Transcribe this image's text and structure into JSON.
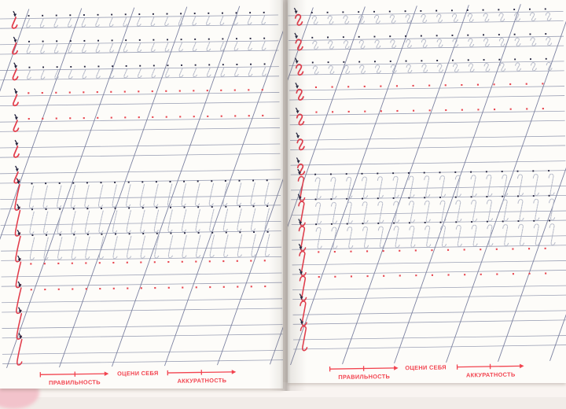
{
  "document": {
    "kind": "cursive handwriting practice workbook spread",
    "visible_pages": 2
  },
  "labels": {
    "rate_yourself": "ОЦЕНИ СЕБЯ",
    "correctness": "ПРАВИЛЬНОСТЬ",
    "accuracy": "АККУРАТНОСТЬ"
  },
  "colors": {
    "page_bg": "#fdfcf9",
    "rule_line": "#9298af",
    "slant_line": "#767c9d",
    "traced_letter": "#aeb3c4",
    "start_dot": "#24243e",
    "model_red": "#e23c4b",
    "red_dot": "#e8454f",
    "label_red": "#f2434f",
    "cover_pink": "#eeb8c3",
    "backdrop": "#f1ece8"
  },
  "pages": [
    {
      "id": "left",
      "practiced_element": "slant line with curve at bottom (hook)",
      "letters_per_trace_row": 18,
      "dots_per_dot_row": 18,
      "rows": [
        {
          "row": 1,
          "type": "trace",
          "size": "short"
        },
        {
          "row": 2,
          "type": "trace",
          "size": "short"
        },
        {
          "row": 3,
          "type": "trace",
          "size": "short"
        },
        {
          "row": 4,
          "type": "dots",
          "size": "short"
        },
        {
          "row": 5,
          "type": "dots",
          "size": "short"
        },
        {
          "row": 6,
          "type": "empty",
          "size": "short"
        },
        {
          "row": 7,
          "type": "empty",
          "size": "short"
        },
        {
          "row": 8,
          "type": "trace",
          "size": "tall"
        },
        {
          "row": 9,
          "type": "trace",
          "size": "tall"
        },
        {
          "row": 10,
          "type": "trace",
          "size": "tall"
        },
        {
          "row": 11,
          "type": "dots",
          "size": "tall"
        },
        {
          "row": 12,
          "type": "dots",
          "size": "tall"
        },
        {
          "row": 13,
          "type": "empty",
          "size": "tall"
        },
        {
          "row": 14,
          "type": "empty",
          "size": "tall"
        }
      ],
      "scales": {
        "left_scale": "correctness",
        "center_text": "rate_yourself",
        "right_scale": "accuracy"
      }
    },
    {
      "id": "right",
      "practiced_element": "slant line with curve at top and bottom",
      "letters_per_trace_row": 16,
      "dots_per_dot_row": 15,
      "rows": [
        {
          "row": 1,
          "type": "trace",
          "size": "short"
        },
        {
          "row": 2,
          "type": "trace",
          "size": "short"
        },
        {
          "row": 3,
          "type": "trace",
          "size": "short"
        },
        {
          "row": 4,
          "type": "dots",
          "size": "short"
        },
        {
          "row": 5,
          "type": "dots",
          "size": "short"
        },
        {
          "row": 6,
          "type": "empty",
          "size": "short"
        },
        {
          "row": 7,
          "type": "empty",
          "size": "short"
        },
        {
          "row": 8,
          "type": "trace",
          "size": "tall"
        },
        {
          "row": 9,
          "type": "trace",
          "size": "tall"
        },
        {
          "row": 10,
          "type": "trace",
          "size": "tall"
        },
        {
          "row": 11,
          "type": "dots",
          "size": "tall"
        },
        {
          "row": 12,
          "type": "dots",
          "size": "tall"
        },
        {
          "row": 13,
          "type": "empty",
          "size": "tall"
        },
        {
          "row": 14,
          "type": "empty",
          "size": "tall"
        }
      ],
      "scales": {
        "left_scale": "correctness",
        "center_text": "rate_yourself",
        "right_scale": "accuracy"
      }
    }
  ]
}
